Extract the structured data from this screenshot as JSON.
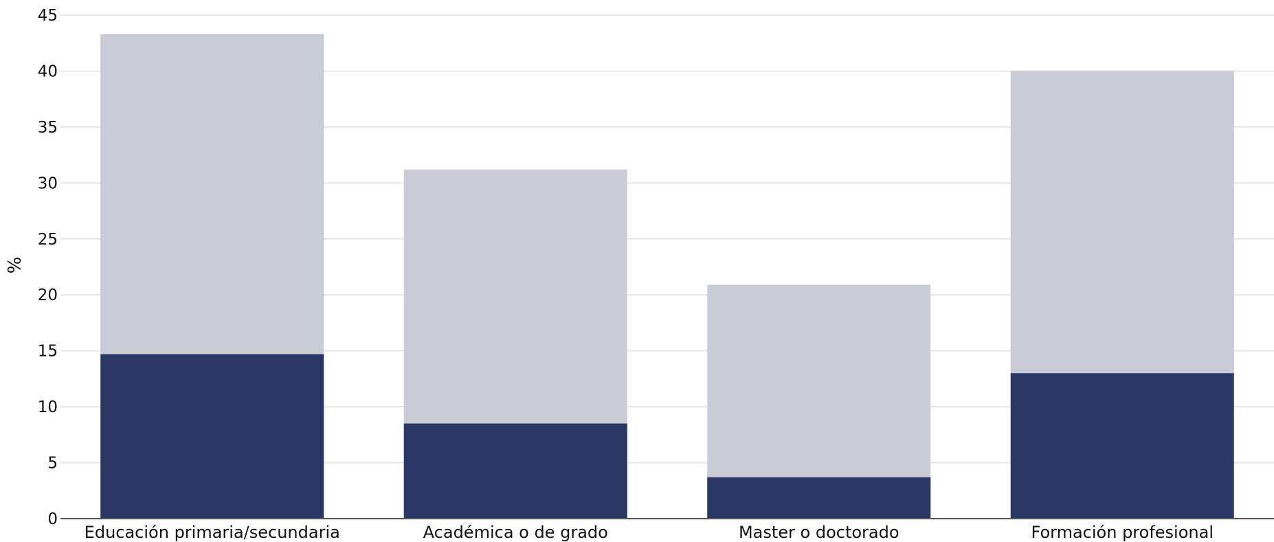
{
  "chart_data": {
    "type": "bar",
    "stacked": false,
    "categories": [
      "Educación primaria/secundaria",
      "Académica o de grado",
      "Master o doctorado",
      "Formación profesional"
    ],
    "series": [
      {
        "values": [
          43.3,
          31.2,
          20.9,
          40.0
        ],
        "color": "#c9cbd7"
      },
      {
        "values": [
          14.7,
          8.5,
          3.7,
          13.0
        ],
        "color": "#2b3764"
      }
    ],
    "title": "",
    "xlabel": "",
    "ylabel": "%",
    "ylim": [
      0,
      45
    ],
    "yticks": [
      0,
      5,
      10,
      15,
      20,
      25,
      30,
      35,
      40,
      45
    ],
    "grid": true,
    "legend": "none"
  }
}
